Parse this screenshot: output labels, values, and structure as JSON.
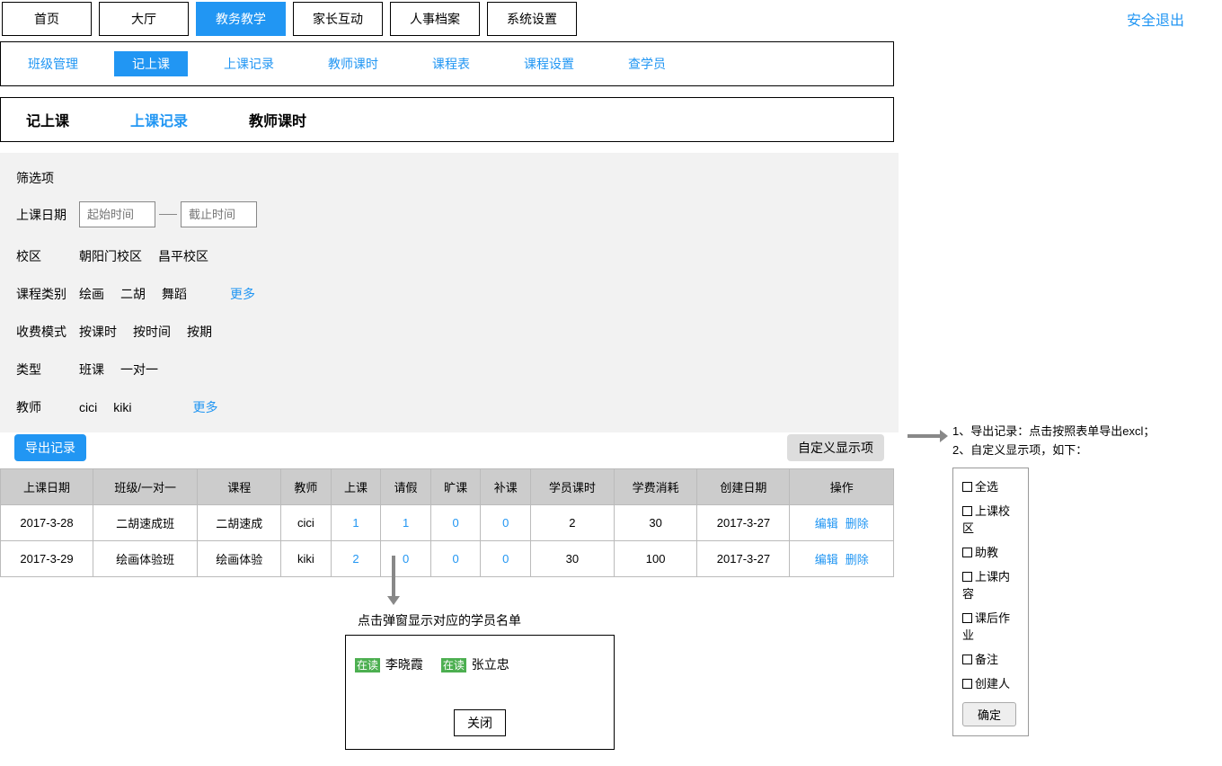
{
  "topNav": {
    "tabs": [
      "首页",
      "大厅",
      "教务教学",
      "家长互动",
      "人事档案",
      "系统设置"
    ],
    "activeIndex": 2,
    "logout": "安全退出"
  },
  "subNav": {
    "items": [
      "班级管理",
      "记上课",
      "上课记录",
      "教师课时",
      "课程表",
      "课程设置",
      "查学员"
    ],
    "activeIndex": 1
  },
  "innerTabs": {
    "items": [
      "记上课",
      "上课记录",
      "教师课时"
    ],
    "activeIndex": 1
  },
  "filters": {
    "title": "筛选项",
    "dateLabel": "上课日期",
    "startPlaceholder": "起始时间",
    "endPlaceholder": "截止时间",
    "campusLabel": "校区",
    "campuses": [
      "朝阳门校区",
      "昌平校区"
    ],
    "courseTypeLabel": "课程类别",
    "courseTypes": [
      "绘画",
      "二胡",
      "舞蹈"
    ],
    "moreLabel": "更多",
    "feeModeLabel": "收费模式",
    "feeModes": [
      "按课时",
      "按时间",
      "按期"
    ],
    "typeLabel": "类型",
    "types": [
      "班课",
      "一对一"
    ],
    "teacherLabel": "教师",
    "teachers": [
      "cici",
      "kiki"
    ]
  },
  "actions": {
    "export": "导出记录",
    "custom": "自定义显示项"
  },
  "table": {
    "columns": [
      "上课日期",
      "班级/一对一",
      "课程",
      "教师",
      "上课",
      "请假",
      "旷课",
      "补课",
      "学员课时",
      "学费消耗",
      "创建日期",
      "操作"
    ],
    "linkColumns": [
      4,
      5,
      6,
      7
    ],
    "rows": [
      [
        "2017-3-28",
        "二胡速成班",
        "二胡速成",
        "cici",
        "1",
        "1",
        "0",
        "0",
        "2",
        "30",
        "2017-3-27"
      ],
      [
        "2017-3-29",
        "绘画体验班",
        "绘画体验",
        "kiki",
        "2",
        "0",
        "0",
        "0",
        "30",
        "100",
        "2017-3-27"
      ]
    ],
    "editLabel": "编辑",
    "deleteLabel": "删除"
  },
  "annotation": {
    "line1": "1、导出记录：点击按照表单导出excl；",
    "line2": "2、自定义显示项，如下："
  },
  "customPanel": {
    "options": [
      "全选",
      "上课校区",
      "助教",
      "上课内容",
      "课后作业",
      "备注",
      "创建人"
    ],
    "confirm": "确定"
  },
  "popup": {
    "note": "点击弹窗显示对应的学员名单",
    "badge": "在读",
    "students": [
      "李晓霞",
      "张立忠"
    ],
    "close": "关闭"
  }
}
